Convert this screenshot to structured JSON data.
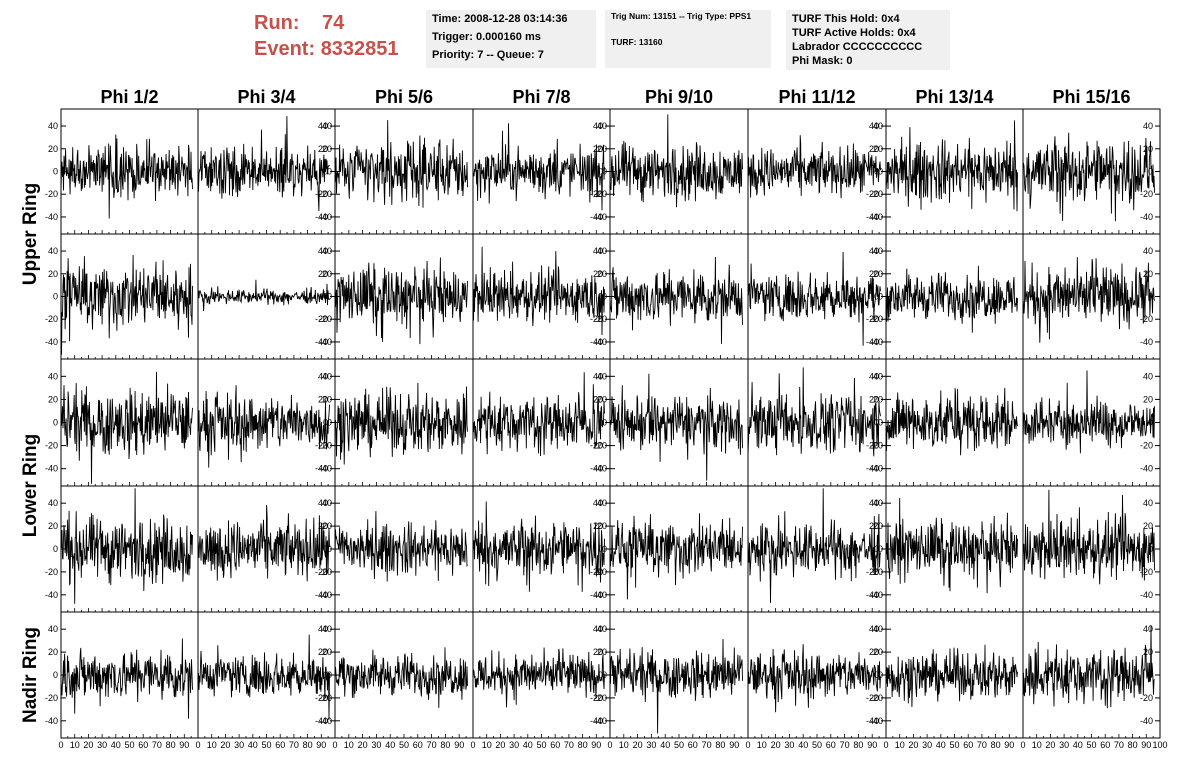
{
  "header": {
    "run_label": "Run:",
    "run_value": "74",
    "event_label": "Event:",
    "event_value": "8332851"
  },
  "info_time": {
    "time": "Time: 2008-12-28 03:14:36",
    "trigger": "Trigger: 0.000160 ms",
    "priority": "Priority: 7 -- Queue: 7"
  },
  "info_trig": {
    "trig_line": "Trig Num: 13151 -- Trig Type: PPS1",
    "turf_line": "TURF: 13160"
  },
  "info_turf": {
    "this_hold": "TURF This Hold: 0x4",
    "active_holds": "TURF Active Holds: 0x4",
    "labrador": "Labrador CCCCCCCCCC",
    "phi_mask": "Phi Mask: 0"
  },
  "colors": {
    "accent": "#c8504b",
    "info_bg": "#f0f0f0",
    "trace": "#000000"
  },
  "chart_data": {
    "type": "line",
    "columns": [
      "Phi 1/2",
      "Phi 3/4",
      "Phi 5/6",
      "Phi 7/8",
      "Phi 9/10",
      "Phi 11/12",
      "Phi 13/14",
      "Phi 15/16"
    ],
    "row_labels": [
      {
        "label": "Upper Ring",
        "rows": [
          0,
          1
        ]
      },
      {
        "label": "Lower Ring",
        "rows": [
          2,
          3
        ]
      },
      {
        "label": "Nadir Ring",
        "rows": [
          4,
          4
        ]
      }
    ],
    "xlim": [
      0,
      100
    ],
    "ylim": [
      -55,
      55
    ],
    "x_ticks": [
      0,
      10,
      20,
      30,
      40,
      50,
      60,
      70,
      80,
      90,
      100
    ],
    "y_ticks": [
      -40,
      -20,
      0,
      20,
      40
    ],
    "samples": 260,
    "amplitude": [
      [
        12,
        11,
        13,
        10,
        12,
        10,
        13,
        14
      ],
      [
        14,
        3,
        13,
        11,
        12,
        10,
        10,
        13
      ],
      [
        14,
        12,
        13,
        12,
        12,
        12,
        12,
        10
      ],
      [
        14,
        12,
        11,
        12,
        12,
        11,
        12,
        13
      ],
      [
        11,
        9,
        9,
        9,
        10,
        10,
        10,
        12
      ]
    ]
  }
}
